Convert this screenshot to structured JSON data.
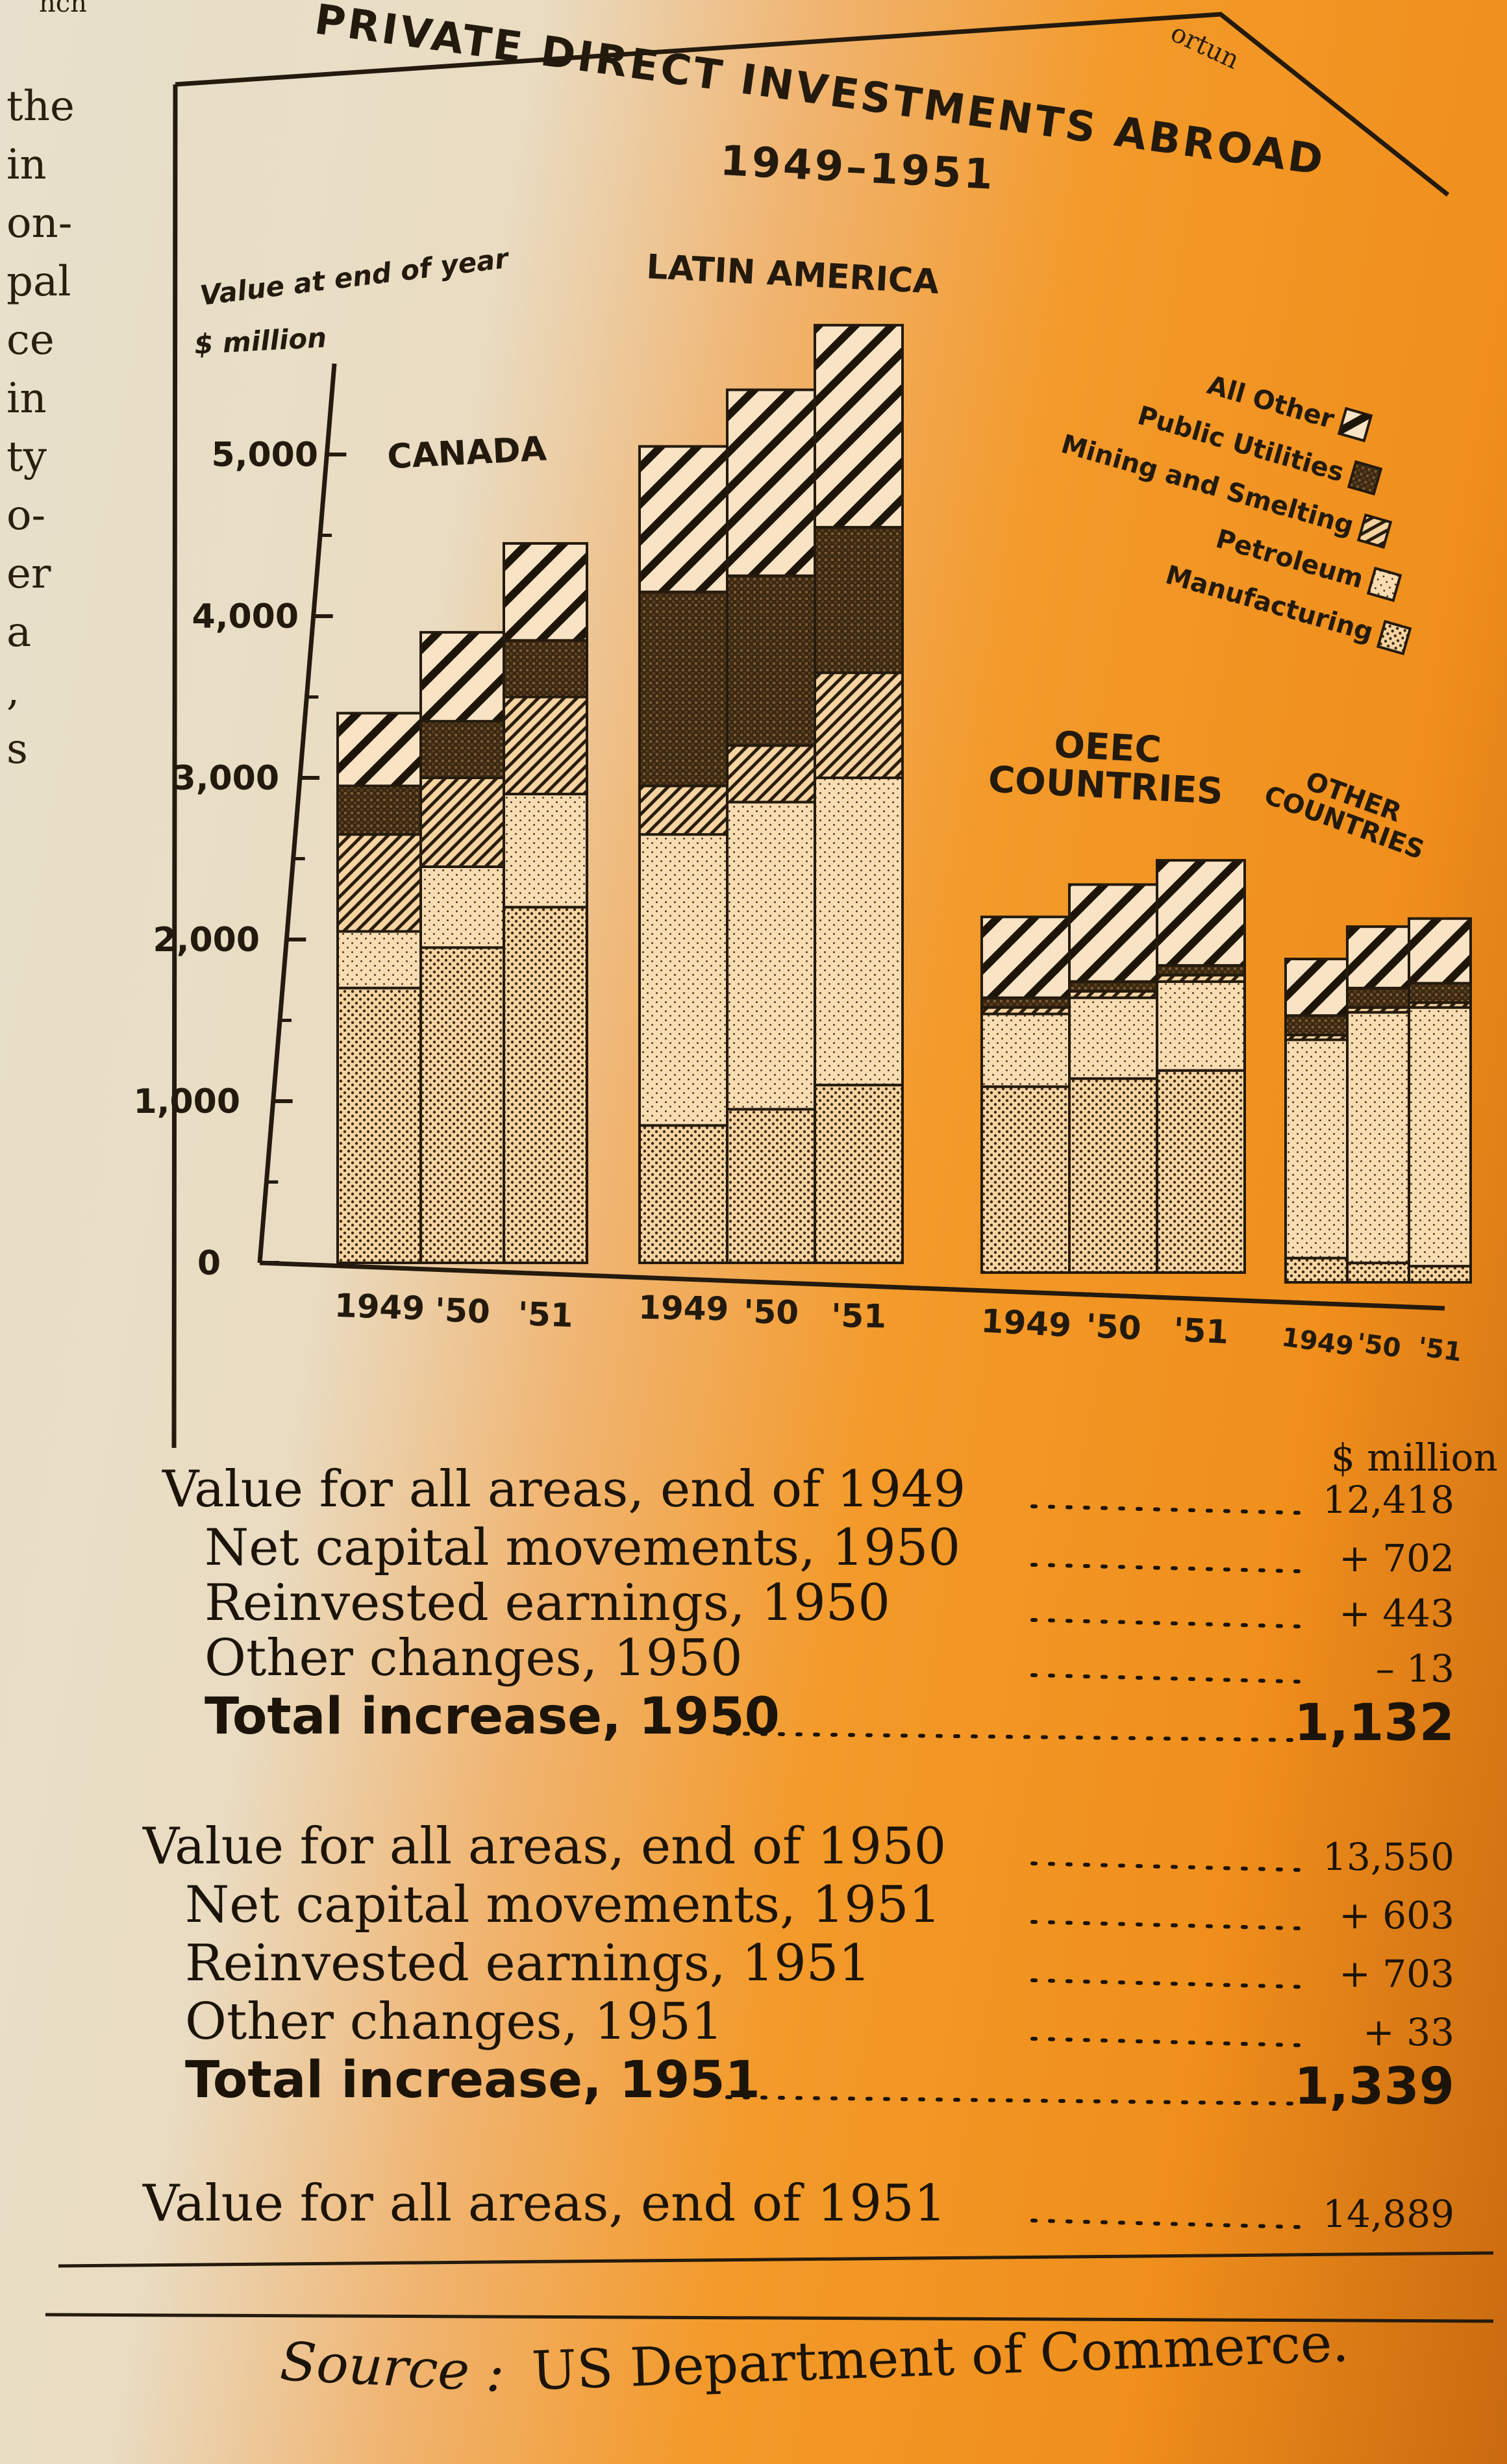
{
  "chart_data": {
    "type": "bar",
    "stacked": true,
    "title": "PRIVATE DIRECT INVESTMENTS ABROAD",
    "subtitle": "1949–1951",
    "ylabel": "Value at end of year",
    "yunit": "$ million",
    "ylim": [
      0,
      5000
    ],
    "yticks": [
      "0",
      "1,000",
      "2,000",
      "3,000",
      "4,000",
      "5,000"
    ],
    "legend_position": "right",
    "legend": [
      "All Other",
      "Public Utilities",
      "Mining and Smelting",
      "Petroleum",
      "Manufacturing"
    ],
    "series_order": [
      "Manufacturing",
      "Petroleum",
      "Mining and Smelting",
      "Public Utilities",
      "All Other"
    ],
    "groups": [
      {
        "name": "CANADA",
        "tick_labels": [
          "1949",
          "'50",
          "'51"
        ],
        "stacks": [
          [
            1700,
            350,
            600,
            300,
            450
          ],
          [
            1950,
            500,
            550,
            350,
            550
          ],
          [
            2200,
            700,
            600,
            350,
            600
          ]
        ]
      },
      {
        "name": "LATIN AMERICA",
        "tick_labels": [
          "1949",
          "'50",
          "'51"
        ],
        "stacks": [
          [
            850,
            1800,
            300,
            1200,
            900
          ],
          [
            950,
            1900,
            350,
            1050,
            1150
          ],
          [
            1100,
            1900,
            650,
            900,
            1250
          ]
        ]
      },
      {
        "name": "OEEC COUNTRIES",
        "tick_labels": [
          "1949",
          "'50",
          "'51"
        ],
        "stacks": [
          [
            1150,
            450,
            40,
            60,
            500
          ],
          [
            1200,
            500,
            40,
            60,
            600
          ],
          [
            1250,
            550,
            40,
            60,
            650
          ]
        ]
      },
      {
        "name": "OTHER COUNTRIES",
        "tick_labels": [
          "1949",
          "'50",
          "'51"
        ],
        "stacks": [
          [
            150,
            1350,
            30,
            120,
            350
          ],
          [
            120,
            1550,
            30,
            120,
            380
          ],
          [
            100,
            1600,
            30,
            120,
            400
          ]
        ]
      }
    ]
  },
  "stats": {
    "unit_label": "$ million",
    "rows": [
      {
        "label": "Value for all areas, end of 1949",
        "value": "12,418",
        "bold": false,
        "indent": false
      },
      {
        "label": "Net capital movements, 1950",
        "value": "+ 702",
        "bold": false,
        "indent": true
      },
      {
        "label": "Reinvested earnings, 1950",
        "value": "+ 443",
        "bold": false,
        "indent": true
      },
      {
        "label": "Other changes, 1950",
        "value": "– 13",
        "bold": false,
        "indent": true
      },
      {
        "label": "Total increase, 1950",
        "value": "1,132",
        "bold": true,
        "indent": true
      },
      {
        "label": "Value for all areas, end of 1950",
        "value": "13,550",
        "bold": false,
        "indent": false
      },
      {
        "label": "Net capital movements, 1951",
        "value": "+ 603",
        "bold": false,
        "indent": true
      },
      {
        "label": "Reinvested earnings, 1951",
        "value": "+ 703",
        "bold": false,
        "indent": true
      },
      {
        "label": "Other changes, 1951",
        "value": "+ 33",
        "bold": false,
        "indent": true
      },
      {
        "label": "Total increase, 1951",
        "value": "1,339",
        "bold": true,
        "indent": true
      },
      {
        "label": "Value for all areas, end of 1951",
        "value": "14,889",
        "bold": false,
        "indent": false
      }
    ]
  },
  "source": {
    "prefix": "Source :",
    "text": "US Department of Commerce."
  },
  "margin_fragments": [
    "the",
    "in",
    "on-",
    "pal",
    "ce",
    "in",
    "ty",
    "o-",
    "er",
    "a",
    ",",
    "s"
  ],
  "corner_fragments": [
    "nch",
    "ortun"
  ]
}
